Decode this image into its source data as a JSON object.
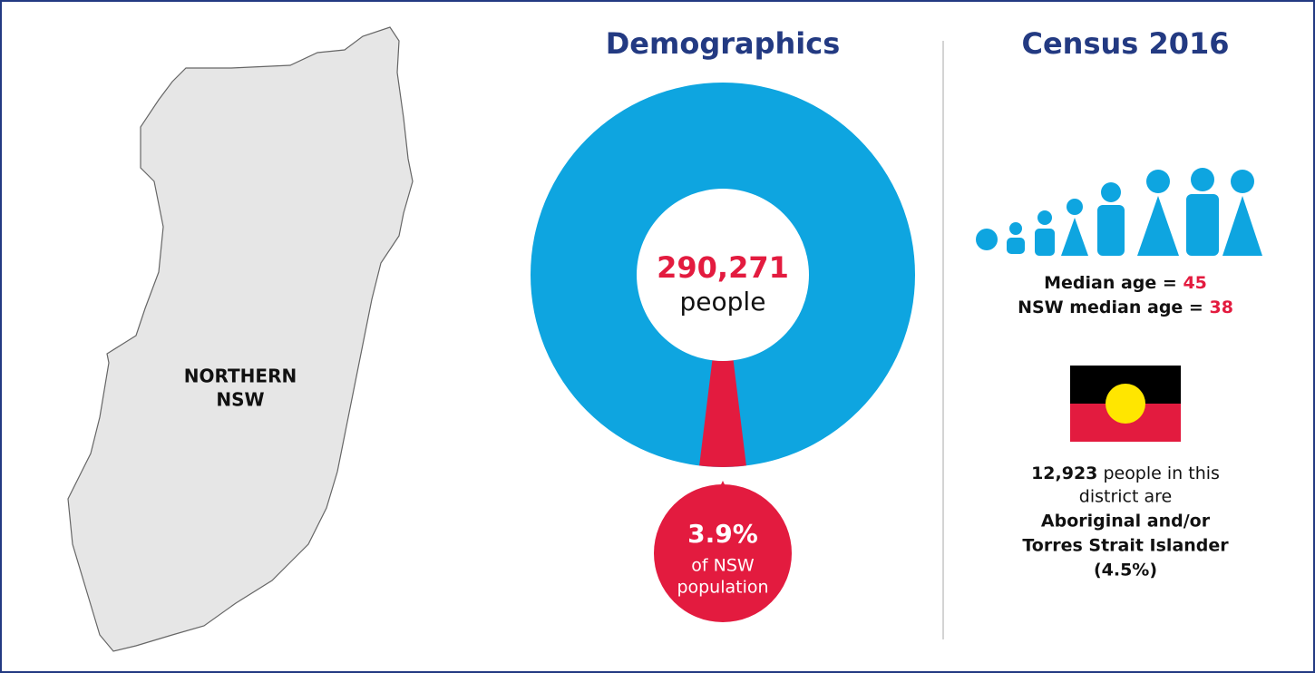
{
  "map": {
    "label": [
      "NORTHERN",
      "NSW"
    ]
  },
  "demographics": {
    "title": "Demographics",
    "population": {
      "value": 290271,
      "label": "290,271"
    },
    "population_unit": "people",
    "share": {
      "value": 3.9,
      "label": "3.9%"
    },
    "share_text": [
      "of NSW",
      "population"
    ]
  },
  "census": {
    "title": "Census 2016",
    "median_age": {
      "label": "Median age =",
      "value": 45
    },
    "nsw_median_age": {
      "label": "NSW median age =",
      "value": 38
    },
    "aboriginal": {
      "count": "12,923",
      "text": [
        "people in this",
        "district are"
      ],
      "bold": [
        "Aboriginal and/or",
        "Torres Strait Islander",
        "(4.5%)"
      ]
    }
  }
}
